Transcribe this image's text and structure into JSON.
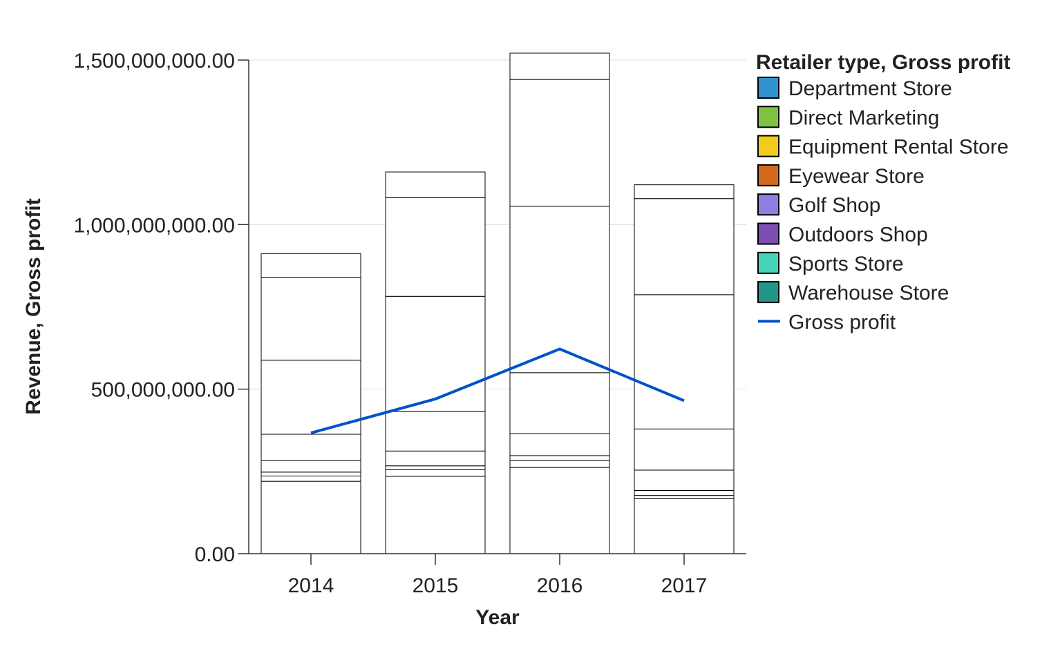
{
  "chart_data": {
    "type": "bar",
    "stacked": true,
    "title": "",
    "xlabel": "Year",
    "ylabel": "Revenue, Gross profit",
    "categories": [
      "2014",
      "2015",
      "2016",
      "2017"
    ],
    "ylim": [
      0,
      1500000000
    ],
    "yticks": [
      "0.00",
      "500,000,000.00",
      "1,000,000,000.00",
      "1,500,000,000.00"
    ],
    "ytick_values": [
      0,
      500000000,
      1000000000,
      1500000000
    ],
    "grid": true,
    "legend": {
      "title": "Retailer type, Gross profit",
      "position": "right"
    },
    "series": [
      {
        "name": "Department Store",
        "color": "#3092d0",
        "values": [
          220000000,
          235000000,
          262000000,
          167000000
        ]
      },
      {
        "name": "Direct Marketing",
        "color": "#80c342",
        "values": [
          16000000,
          20000000,
          21000000,
          10000000
        ]
      },
      {
        "name": "Equipment Rental Store",
        "color": "#f2cb1d",
        "values": [
          12000000,
          12000000,
          15000000,
          15000000
        ]
      },
      {
        "name": "Eyewear Store",
        "color": "#d2691e",
        "values": [
          35000000,
          45000000,
          67000000,
          62000000
        ]
      },
      {
        "name": "Golf Shop",
        "color": "#8c7fe3",
        "values": [
          80000000,
          120000000,
          185000000,
          125000000
        ]
      },
      {
        "name": "Outdoors Shop",
        "color": "#7c4eb3",
        "values": [
          225000000,
          350000000,
          506000000,
          408000000
        ]
      },
      {
        "name": "Sports Store",
        "color": "#47d4b6",
        "values": [
          252000000,
          300000000,
          385000000,
          292000000
        ]
      },
      {
        "name": "Warehouse Store",
        "color": "#22968a",
        "values": [
          72000000,
          78000000,
          80000000,
          42000000
        ]
      }
    ],
    "line": {
      "name": "Gross profit",
      "color": "#0052cc",
      "values": [
        367000000,
        470000000,
        622000000,
        465000000
      ]
    }
  }
}
